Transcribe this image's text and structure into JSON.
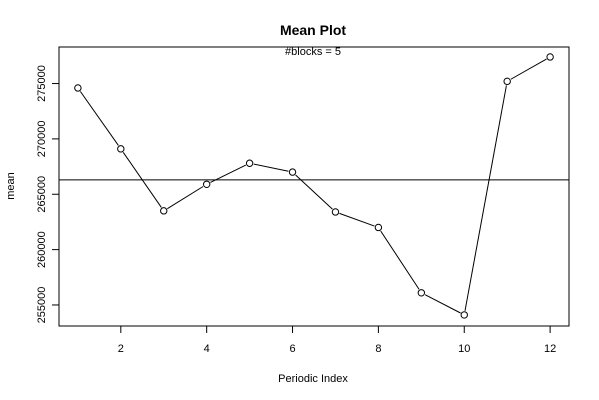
{
  "chart_data": {
    "type": "line",
    "title": "Mean Plot",
    "subtitle": "#blocks =  5",
    "xlabel": "Periodic Index",
    "ylabel": "mean",
    "xlim": [
      0.56,
      12.44
    ],
    "ylim": [
      253100,
      278300
    ],
    "x_ticks": [
      2,
      4,
      6,
      8,
      10,
      12
    ],
    "y_ticks": [
      255000,
      260000,
      265000,
      270000,
      275000
    ],
    "grid": false,
    "reference_line": 266300,
    "series": [
      {
        "x": [
          1,
          2,
          3,
          4,
          5,
          6,
          7,
          8,
          9,
          10,
          11,
          12
        ],
        "values": [
          274600,
          269100,
          263500,
          265900,
          267800,
          267000,
          263400,
          262000,
          256100,
          254100,
          275200,
          277400
        ]
      }
    ]
  }
}
